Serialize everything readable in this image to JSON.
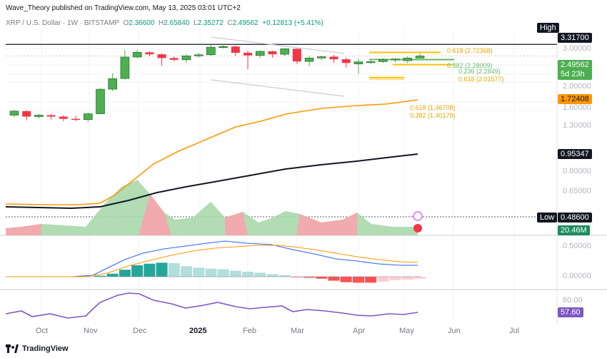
{
  "header": {
    "publisher": "Wave_Theory published on TradingView.com, May 13, 2025 03:01 UTC+2",
    "symbol": "XRP / U.S. Dollar · 1W · BITSTAMP",
    "open_label": "O",
    "open": "2.36600",
    "high_label": "H",
    "high": "2.65840",
    "low_label": "L",
    "low": "2.35272",
    "close_label": "C",
    "close": "2.49562",
    "change": "+0.12813 (+5.41%)"
  },
  "price_axis": {
    "high_tag": "High",
    "high_value": "3.31700",
    "ticks": [
      "3.00000",
      "2.00000",
      "1.60000",
      "1.30000",
      "0.80000",
      "0.65000"
    ],
    "current_value": "2.49562",
    "countdown": "5d 23h",
    "ema50_value": "1.72408",
    "ema200_value": "0.95347",
    "low_tag": "Low",
    "low_value": "0.48600",
    "volume_value": "20.46M",
    "macd_ticks": [
      "0.50000",
      "0.00000"
    ],
    "rsi_tick": "80.00",
    "rsi_value": "57.60"
  },
  "fib_labels": {
    "f618_upper": "0.618 (2.72368)",
    "f382": "0.382 (2.28009)",
    "f236": "0.236 (2.2849)",
    "f618_mid": "0.618 (2.01577)",
    "f618_lower": "0.618 (1.46708)",
    "f382_lower": "0.382 (1.40179)"
  },
  "time_axis": [
    "Oct",
    "Nov",
    "Dec",
    "2025",
    "Feb",
    "Mar",
    "Apr",
    "May",
    "Jun",
    "Jul"
  ],
  "footer": {
    "brand": "TradingView"
  },
  "colors": {
    "up": "#4caf50",
    "down": "#f23645",
    "ema50": "#ff9800",
    "ema200": "#131722",
    "fib_gold": "#ffc107",
    "fib_green": "#66bb6a",
    "macd": "#2962ff",
    "signal": "#ff9800",
    "rsi": "#7e57c2",
    "grid": "#f0f3fa"
  },
  "chart_data": {
    "type": "candlestick",
    "title": "XRP / U.S. Dollar · 1W · BITSTAMP",
    "y_scale": "log",
    "x_range": [
      "Sep 2024",
      "Jul 2025"
    ],
    "candles": [
      {
        "o": 0.58,
        "h": 0.66,
        "l": 0.55,
        "c": 0.64
      },
      {
        "o": 0.64,
        "h": 0.66,
        "l": 0.51,
        "c": 0.56
      },
      {
        "o": 0.56,
        "h": 0.6,
        "l": 0.53,
        "c": 0.58
      },
      {
        "o": 0.58,
        "h": 0.6,
        "l": 0.52,
        "c": 0.56
      },
      {
        "o": 0.56,
        "h": 0.58,
        "l": 0.5,
        "c": 0.53
      },
      {
        "o": 0.53,
        "h": 0.57,
        "l": 0.5,
        "c": 0.52
      },
      {
        "o": 0.52,
        "h": 0.62,
        "l": 0.49,
        "c": 0.6
      },
      {
        "o": 0.6,
        "h": 1.13,
        "l": 0.6,
        "c": 1.1
      },
      {
        "o": 1.1,
        "h": 1.63,
        "l": 1.05,
        "c": 1.43
      },
      {
        "o": 1.43,
        "h": 2.9,
        "l": 1.4,
        "c": 2.43
      },
      {
        "o": 2.43,
        "h": 2.9,
        "l": 2.35,
        "c": 2.73
      },
      {
        "o": 2.73,
        "h": 2.8,
        "l": 2.47,
        "c": 2.6
      },
      {
        "o": 2.6,
        "h": 2.67,
        "l": 1.95,
        "c": 2.37
      },
      {
        "o": 2.37,
        "h": 2.45,
        "l": 2.17,
        "c": 2.27
      },
      {
        "o": 2.27,
        "h": 2.6,
        "l": 2.1,
        "c": 2.5
      },
      {
        "o": 2.5,
        "h": 2.7,
        "l": 2.41,
        "c": 2.57
      },
      {
        "o": 2.57,
        "h": 3.3,
        "l": 2.5,
        "c": 3.1
      },
      {
        "o": 3.1,
        "h": 3.4,
        "l": 3.0,
        "c": 3.15
      },
      {
        "o": 3.15,
        "h": 3.25,
        "l": 2.5,
        "c": 2.7
      },
      {
        "o": 2.7,
        "h": 2.85,
        "l": 1.8,
        "c": 2.53
      },
      {
        "o": 2.53,
        "h": 2.85,
        "l": 2.38,
        "c": 2.8
      },
      {
        "o": 2.8,
        "h": 2.85,
        "l": 2.4,
        "c": 2.6
      },
      {
        "o": 2.6,
        "h": 3.0,
        "l": 2.5,
        "c": 2.98
      },
      {
        "o": 2.98,
        "h": 3.0,
        "l": 2.05,
        "c": 2.18
      },
      {
        "o": 2.18,
        "h": 2.5,
        "l": 1.95,
        "c": 2.37
      },
      {
        "o": 2.37,
        "h": 2.5,
        "l": 2.25,
        "c": 2.45
      },
      {
        "o": 2.45,
        "h": 2.55,
        "l": 2.1,
        "c": 2.3
      },
      {
        "o": 2.3,
        "h": 2.4,
        "l": 1.88,
        "c": 2.1
      },
      {
        "o": 2.05,
        "h": 2.35,
        "l": 1.61,
        "c": 2.16
      },
      {
        "o": 2.16,
        "h": 2.25,
        "l": 2.06,
        "c": 2.17
      },
      {
        "o": 2.17,
        "h": 2.36,
        "l": 2.1,
        "c": 2.3
      },
      {
        "o": 2.3,
        "h": 2.36,
        "l": 2.12,
        "c": 2.32
      },
      {
        "o": 2.22,
        "h": 2.47,
        "l": 2.09,
        "c": 2.37
      },
      {
        "o": 2.37,
        "h": 2.6584,
        "l": 2.35272,
        "c": 2.49562
      }
    ],
    "ema50": {
      "name": "EMA 50",
      "last": 1.72408
    },
    "ema200": {
      "name": "EMA 200",
      "last": 0.95347
    },
    "high": 3.317,
    "low": 0.486,
    "fib_levels": [
      2.72368,
      2.28009,
      2.2849,
      2.01577,
      1.46708,
      1.40179
    ],
    "volume_last": "20.46M",
    "macd": {
      "ylim": [
        -0.1,
        0.6
      ]
    },
    "rsi": {
      "last": 57.6,
      "ylim": [
        30,
        85
      ]
    }
  }
}
